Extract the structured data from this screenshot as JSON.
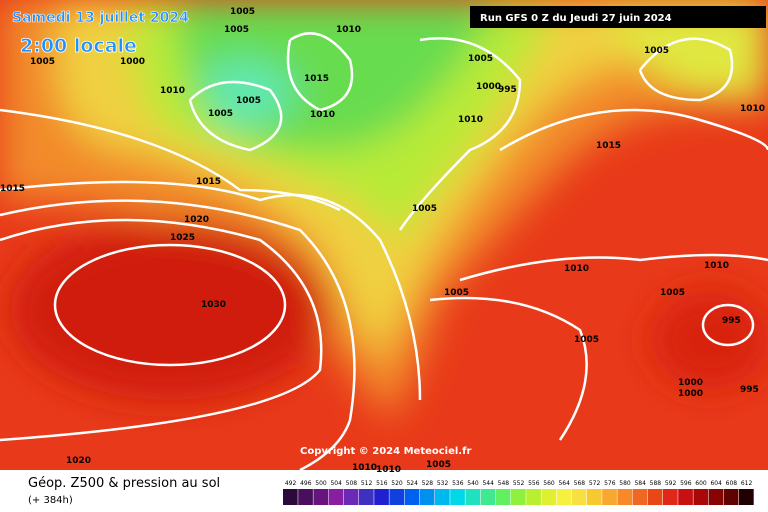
{
  "header": {
    "date": "Samedi 13 juillet 2024",
    "time": "2:00 locale",
    "run": "Run GFS 0 Z du Jeudi 27 juin 2024"
  },
  "isobar_labels": [
    "1005",
    "1005",
    "1010",
    "1005",
    "1000",
    "1010",
    "1015",
    "1005",
    "1005",
    "1010",
    "1005",
    "1000",
    "995",
    "1010",
    "1005",
    "1010",
    "1015",
    "1015",
    "1015",
    "1020",
    "1025",
    "1005",
    "1030",
    "1010",
    "1010",
    "1005",
    "1005",
    "995",
    "1005",
    "1000",
    "1000",
    "995",
    "1020",
    "1010",
    "1010",
    "1005"
  ],
  "copyright": "Copyright © 2024 Meteociel.fr",
  "footer": {
    "title": "Géop. Z500 & pression au sol",
    "lead": "(+ 384h)"
  },
  "legend": {
    "labels": [
      "492",
      "496",
      "500",
      "504",
      "508",
      "512",
      "516",
      "520",
      "524",
      "528",
      "532",
      "536",
      "540",
      "544",
      "548",
      "552",
      "556",
      "560",
      "564",
      "568",
      "572",
      "576",
      "580",
      "584",
      "588",
      "592",
      "596",
      "600",
      "604",
      "608",
      "612"
    ],
    "colors": [
      "#2a0a3c",
      "#48105c",
      "#66147e",
      "#8a1ea0",
      "#6a2ab8",
      "#4030c0",
      "#2020d0",
      "#1040e0",
      "#0060f0",
      "#0090f0",
      "#00b8f0",
      "#00d8e8",
      "#20e0c0",
      "#40e890",
      "#60f060",
      "#90f040",
      "#b8f030",
      "#e0f030",
      "#f8f040",
      "#f8e040",
      "#f8c830",
      "#f8a830",
      "#f88828",
      "#f06820",
      "#e84818",
      "#e02818",
      "#c81010",
      "#a80808",
      "#880404",
      "#600202",
      "#200000"
    ]
  }
}
